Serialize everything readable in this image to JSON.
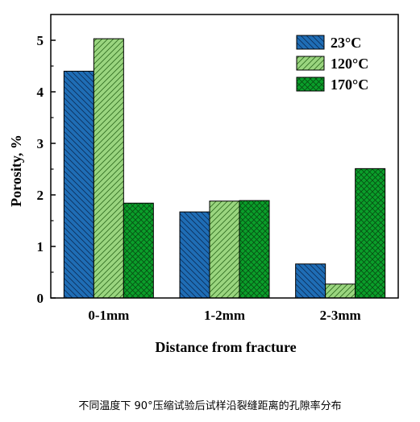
{
  "caption": "不同温度下 90°压缩试验后试样沿裂缝距离的孔隙率分布",
  "chart_data": {
    "type": "bar",
    "categories": [
      "0-1mm",
      "1-2mm",
      "2-3mm"
    ],
    "series": [
      {
        "name": "23°C",
        "values": [
          4.4,
          1.67,
          0.66
        ],
        "color": "#1f6db5",
        "pattern": "diagonal-left"
      },
      {
        "name": "120°C",
        "values": [
          5.03,
          1.88,
          0.27
        ],
        "color": "#9ad57f",
        "pattern": "diagonal-right"
      },
      {
        "name": "170°C",
        "values": [
          1.84,
          1.89,
          2.51
        ],
        "color": "#0a9e2a",
        "pattern": "crosshatch"
      }
    ],
    "title": "",
    "xlabel": "Distance from fracture",
    "ylabel": "Porosity, %",
    "ylim": [
      0,
      5.5
    ],
    "yticks": [
      0,
      1,
      2,
      3,
      4,
      5
    ],
    "grid": false,
    "legend_position": "top-right"
  }
}
